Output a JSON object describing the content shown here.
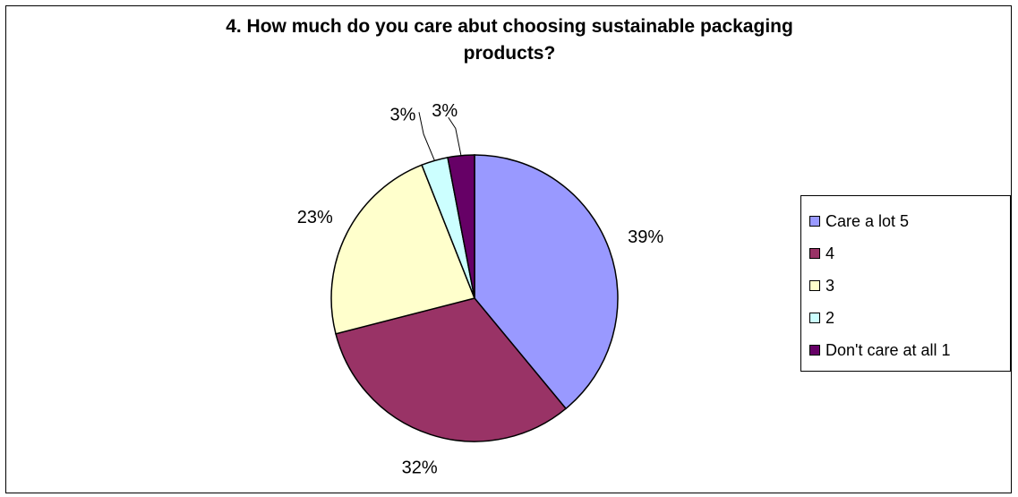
{
  "chart_data": {
    "type": "pie",
    "title": "4. How much do you care abut choosing sustainable packaging products?",
    "title_lines": [
      "4. How much do you care abut choosing sustainable packaging",
      "products?"
    ],
    "slices": [
      {
        "label": "Care a lot 5",
        "value": 39,
        "display": "39%",
        "color": "#9999FF"
      },
      {
        "label": "4",
        "value": 32,
        "display": "32%",
        "color": "#993366"
      },
      {
        "label": "3",
        "value": 23,
        "display": "23%",
        "color": "#FFFFCC"
      },
      {
        "label": "2",
        "value": 3,
        "display": "3%",
        "color": "#CCFFFF"
      },
      {
        "label": "Don't care at all 1",
        "value": 3,
        "display": "3%",
        "color": "#660066"
      }
    ],
    "legend_position": "right",
    "start_angle": "12 o'clock",
    "direction": "clockwise"
  }
}
